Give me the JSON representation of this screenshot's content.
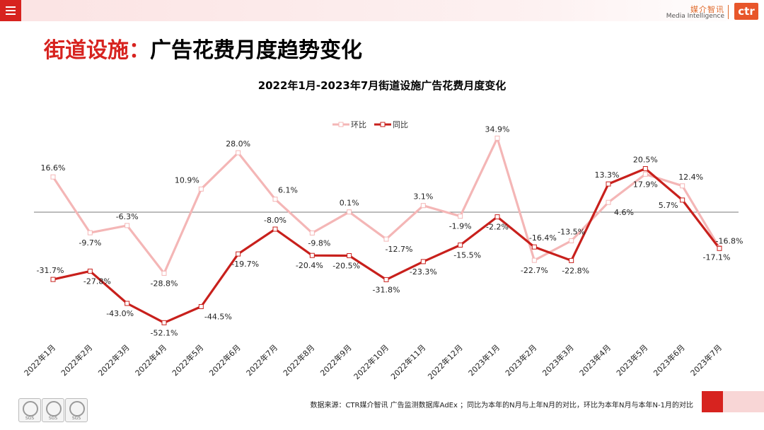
{
  "header": {
    "logo_cn": "媒介智讯",
    "logo_en": "Media Intelligence",
    "logo_mark": "ctr",
    "menu_icon": "hamburger-icon"
  },
  "page": {
    "title_accent": "街道设施：",
    "title_rest": "广告花费月度趋势变化"
  },
  "footer": {
    "note": "数据来源：CTR媒介智讯 广告监测数据库AdEx ；同比为本年的N月与上年N月的对比，环比为本年N月与本年N-1月的对比",
    "cert_label": "SGS"
  },
  "chart_data": {
    "type": "line",
    "title": "2022年1月-2023年7月街道设施广告花费月度变化",
    "legend_position": "top-center",
    "categories": [
      "2022年1月",
      "2022年2月",
      "2022年3月",
      "2022年4月",
      "2022年5月",
      "2022年6月",
      "2022年7月",
      "2022年8月",
      "2022年9月",
      "2022年10月",
      "2022年11月",
      "2022年12月",
      "2023年1月",
      "2023年2月",
      "2023年3月",
      "2023年4月",
      "2023年5月",
      "2023年6月",
      "2023年7月"
    ],
    "ylim": [
      -60,
      40
    ],
    "grid": false,
    "zero_line": true,
    "series": [
      {
        "name": "环比",
        "color": "#f4b6b6",
        "values": [
          16.6,
          -9.7,
          -6.3,
          -28.8,
          10.9,
          28.0,
          6.1,
          -9.8,
          0.1,
          -12.7,
          3.1,
          -1.9,
          34.9,
          -22.7,
          -13.5,
          4.6,
          17.9,
          12.4,
          -16.8
        ],
        "labels": [
          "16.6%",
          "-9.7%",
          "-6.3%",
          "-28.8%",
          "10.9%",
          "28.0%",
          "6.1%",
          "-9.8%",
          "0.1%",
          "-12.7%",
          "3.1%",
          "-1.9%",
          "34.9%",
          "-22.7%",
          "-13.5%",
          "4.6%",
          "17.9%",
          "12.4%",
          "-16.8%"
        ]
      },
      {
        "name": "同比",
        "color": "#c8201c",
        "values": [
          -31.7,
          -27.8,
          -43.0,
          -52.1,
          -44.5,
          -19.7,
          -8.0,
          -20.4,
          -20.5,
          -31.8,
          -23.3,
          -15.5,
          -2.2,
          -16.4,
          -22.8,
          13.3,
          20.5,
          5.7,
          -17.1
        ],
        "labels": [
          "-31.7%",
          "-27.8%",
          "-43.0%",
          "-52.1%",
          "-44.5%",
          "-19.7%",
          "-8.0%",
          "-20.4%",
          "-20.5%",
          "-31.8%",
          "-23.3%",
          "-15.5%",
          "-2.2%",
          "-16.4%",
          "-22.8%",
          "13.3%",
          "20.5%",
          "5.7%",
          "-17.1%"
        ]
      }
    ]
  }
}
